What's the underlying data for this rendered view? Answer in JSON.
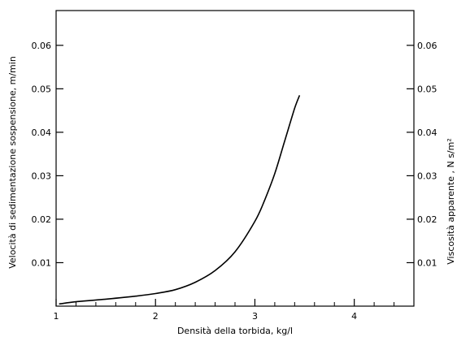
{
  "chart_data": {
    "type": "line",
    "title": "",
    "xlabel": "Densità della torbida,  kg/l",
    "ylabel_left": "Velocità di sedimentazione sospensione,   m/min",
    "ylabel_right": "Viscosità apparente ,  N s/m²",
    "xlim": [
      1,
      4.6
    ],
    "ylim_left": [
      0,
      0.068
    ],
    "ylim_right": [
      0,
      0.068
    ],
    "x_ticks": [
      1,
      2,
      3,
      4
    ],
    "x_ticks_minor": [
      1.2,
      1.4,
      1.6,
      1.8,
      2.2,
      2.4,
      2.6,
      2.8,
      3.2,
      3.4,
      3.6,
      3.8,
      4.2,
      4.4
    ],
    "y_ticks_left": [
      0.01,
      0.02,
      0.03,
      0.04,
      0.05,
      0.06
    ],
    "y_ticks_right": [
      0.01,
      0.02,
      0.03,
      0.04,
      0.05,
      0.06
    ],
    "grid": false,
    "legend": "none",
    "series": [
      {
        "x": [
          1.03,
          1.2,
          1.5,
          1.8,
          2.0,
          2.2,
          2.4,
          2.6,
          2.8,
          3.0,
          3.1,
          3.2,
          3.3,
          3.4,
          3.45
        ],
        "y": [
          0.0005,
          0.001,
          0.0016,
          0.0023,
          0.0029,
          0.0038,
          0.0055,
          0.0082,
          0.0125,
          0.0195,
          0.0245,
          0.0305,
          0.038,
          0.0455,
          0.0485
        ]
      }
    ],
    "color": "#000000"
  }
}
